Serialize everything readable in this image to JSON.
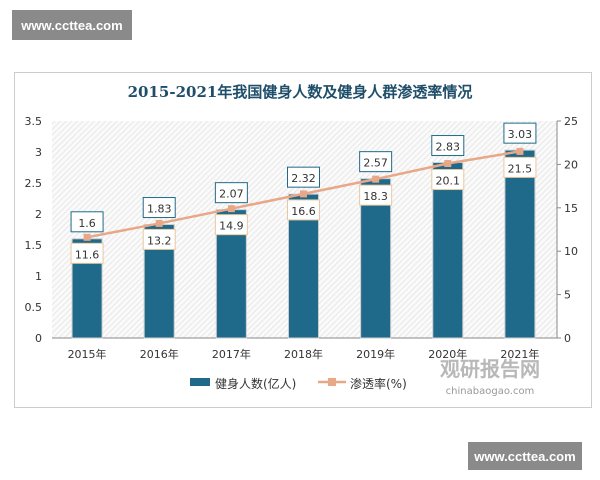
{
  "watermarks": {
    "top": "www.ccttea.com",
    "bottom": "www.ccttea.com",
    "logo_cn": "观研报告网",
    "logo_en": "chinabaogao.com"
  },
  "colors": {
    "bar": "#1f6a8a",
    "line": "#e8a888",
    "label_border": "#1f6a8a",
    "line_label_border": "#e8c8a0"
  },
  "chart_data": {
    "type": "bar",
    "title": "2015-2021年我国健身人数及健身人群渗透率情况",
    "categories": [
      "2015年",
      "2016年",
      "2017年",
      "2018年",
      "2019年",
      "2020年",
      "2021年"
    ],
    "series": [
      {
        "name": "健身人数(亿人)",
        "type": "bar",
        "axis": "left",
        "values": [
          1.6,
          1.83,
          2.07,
          2.32,
          2.57,
          2.83,
          3.03
        ]
      },
      {
        "name": "渗透率(%)",
        "type": "line",
        "axis": "right",
        "values": [
          11.6,
          13.2,
          14.9,
          16.6,
          18.3,
          20.1,
          21.5
        ]
      }
    ],
    "ylim_left": [
      0,
      3.5
    ],
    "yticks_left": [
      "0",
      "0.5",
      "1",
      "1.5",
      "2",
      "2.5",
      "3",
      "3.5"
    ],
    "ylim_right": [
      0,
      25
    ],
    "yticks_right": [
      "0",
      "5",
      "10",
      "15",
      "20",
      "25"
    ],
    "legend": "bottom",
    "grid": false
  }
}
